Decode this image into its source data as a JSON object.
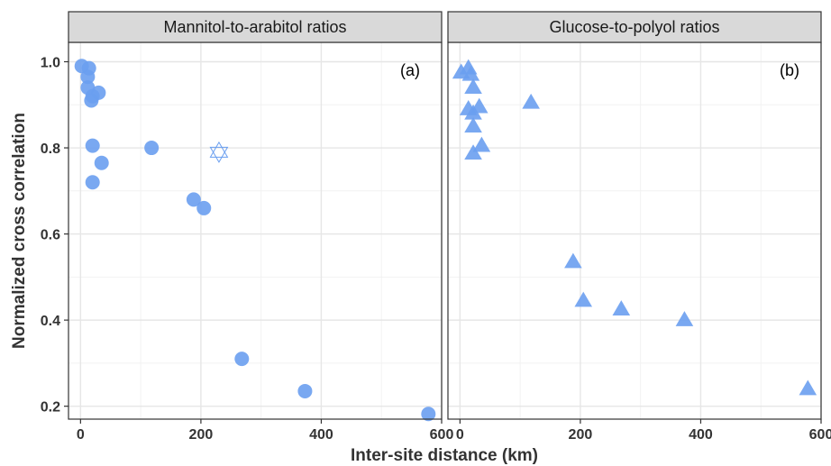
{
  "chart_data": {
    "type": "scatter",
    "xlabel": "Inter-site distance (km)",
    "ylabel": "Normalized cross correlation",
    "xlim": [
      -20,
      600
    ],
    "ylim": [
      0.17,
      1.045
    ],
    "x_ticks": [
      0,
      200,
      400,
      600
    ],
    "y_ticks": [
      0.2,
      0.4,
      0.6,
      0.8,
      1.0
    ],
    "y_tick_labels": [
      "0.2",
      "0.4",
      "0.6",
      "0.8",
      "1.0"
    ],
    "grid": true,
    "point_color": "#6a9ff0",
    "panels": [
      {
        "title": "Mannitol-to-arabitol ratios",
        "tag": "(a)",
        "marker": "circle",
        "points": [
          {
            "x": 2,
            "y": 0.99
          },
          {
            "x": 14,
            "y": 0.985
          },
          {
            "x": 12,
            "y": 0.965
          },
          {
            "x": 12,
            "y": 0.94
          },
          {
            "x": 20,
            "y": 0.92
          },
          {
            "x": 18,
            "y": 0.91
          },
          {
            "x": 30,
            "y": 0.928
          },
          {
            "x": 20,
            "y": 0.805
          },
          {
            "x": 35,
            "y": 0.765
          },
          {
            "x": 20,
            "y": 0.72
          },
          {
            "x": 118,
            "y": 0.8
          },
          {
            "x": 188,
            "y": 0.68
          },
          {
            "x": 205,
            "y": 0.66
          },
          {
            "x": 268,
            "y": 0.31
          },
          {
            "x": 373,
            "y": 0.235
          },
          {
            "x": 578,
            "y": 0.182
          }
        ],
        "outlier_points": [
          {
            "x": 230,
            "y": 0.79,
            "marker": "star-of-david"
          }
        ]
      },
      {
        "title": "Glucose-to-polyol ratios",
        "tag": "(b)",
        "marker": "triangle",
        "points": [
          {
            "x": 2,
            "y": 0.975
          },
          {
            "x": 14,
            "y": 0.985
          },
          {
            "x": 18,
            "y": 0.97
          },
          {
            "x": 22,
            "y": 0.94
          },
          {
            "x": 14,
            "y": 0.89
          },
          {
            "x": 22,
            "y": 0.88
          },
          {
            "x": 32,
            "y": 0.895
          },
          {
            "x": 22,
            "y": 0.85
          },
          {
            "x": 36,
            "y": 0.805
          },
          {
            "x": 22,
            "y": 0.787
          },
          {
            "x": 118,
            "y": 0.905
          },
          {
            "x": 188,
            "y": 0.535
          },
          {
            "x": 205,
            "y": 0.445
          },
          {
            "x": 268,
            "y": 0.425
          },
          {
            "x": 373,
            "y": 0.4
          },
          {
            "x": 578,
            "y": 0.24
          }
        ]
      }
    ]
  }
}
